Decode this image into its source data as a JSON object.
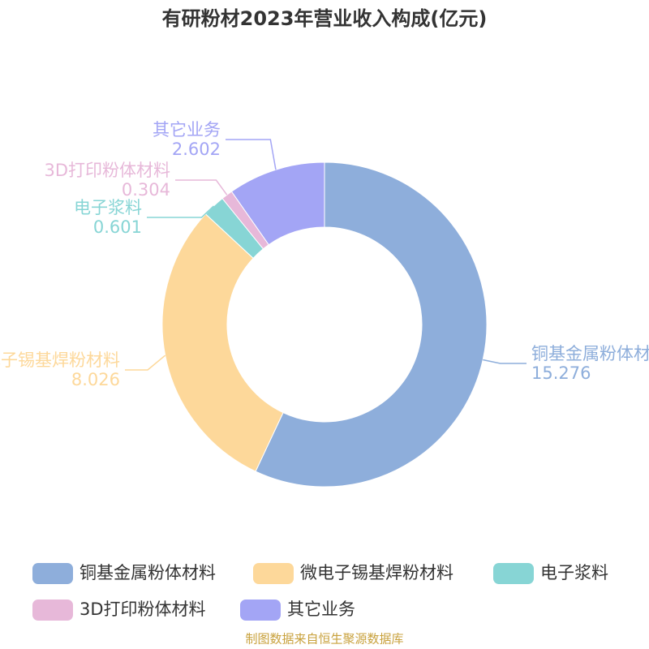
{
  "chart_data": {
    "type": "donut",
    "title": "有研粉材2023年营业收入构成(亿元)",
    "categories": [
      "铜基金属粉体材料",
      "微电子锡基焊粉材料",
      "电子浆料",
      "3D打印粉体材料",
      "其它业务"
    ],
    "values": [
      15.276,
      8.026,
      0.601,
      0.304,
      2.602
    ],
    "colors": [
      "#8eaedb",
      "#fdd89a",
      "#87d5d5",
      "#e7b8d9",
      "#a3a5f5"
    ],
    "source": "制图数据来自恒生聚源数据库"
  }
}
